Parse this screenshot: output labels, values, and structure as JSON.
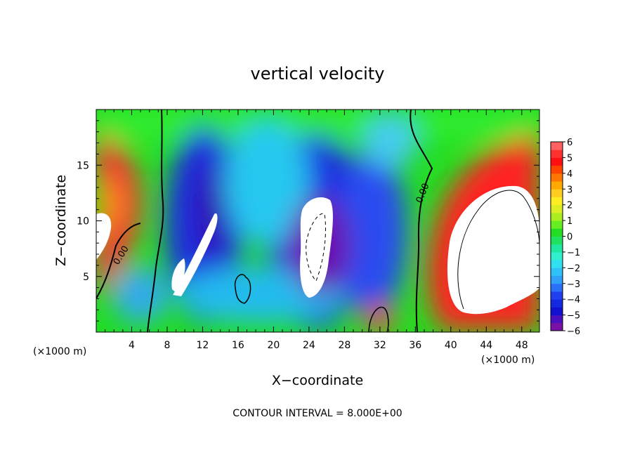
{
  "chart_data": {
    "type": "heatmap",
    "title": "vertical velocity",
    "xlabel": "X−coordinate",
    "ylabel": "Z−coordinate",
    "x_unit_left": "(×1000 m)",
    "x_unit_right": "(×1000 m)",
    "xlim": [
      0,
      50
    ],
    "ylim": [
      0,
      20
    ],
    "x_ticks": [
      4,
      8,
      12,
      16,
      20,
      24,
      28,
      32,
      36,
      40,
      44,
      48
    ],
    "y_ticks": [
      5,
      10,
      15
    ],
    "colorbar": {
      "range": [
        -6,
        6
      ],
      "ticks": [
        6,
        5,
        4,
        3,
        2,
        1,
        0,
        -1,
        -2,
        -3,
        -4,
        -5,
        -6
      ],
      "tick_labels": [
        "6",
        "5",
        "4",
        "3",
        "2",
        "1",
        "0",
        "−1",
        "−2",
        "−3",
        "−4",
        "−5",
        "−6"
      ]
    },
    "contour_labels": [
      "0.00",
      "0.00"
    ],
    "footer": "CONTOUR INTERVAL = 8.000E+00",
    "field_features": [
      {
        "x": 2,
        "z": 13,
        "w": 6,
        "r": 3
      },
      {
        "x": 1,
        "z": 8,
        "w": 8,
        "r": 2
      },
      {
        "x": 47,
        "z": 12,
        "w": 6,
        "r": 4
      },
      {
        "x": 44,
        "z": 7,
        "w": 9,
        "r": 4
      },
      {
        "x": 12,
        "z": 7,
        "w": -6,
        "r": 2
      },
      {
        "x": 25,
        "z": 8,
        "w": -6,
        "r": 3
      },
      {
        "x": 14,
        "z": 10,
        "w": -5,
        "r": 3
      },
      {
        "x": 30,
        "z": 10,
        "w": -4,
        "r": 3
      },
      {
        "x": 32,
        "z": 1.5,
        "w": 5,
        "r": 1
      }
    ]
  }
}
